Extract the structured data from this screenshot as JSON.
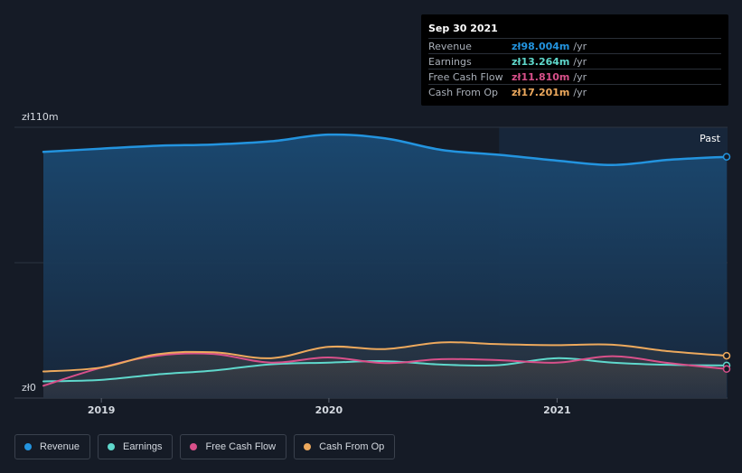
{
  "chart_data": {
    "type": "area",
    "currency": "zł",
    "unit": "m",
    "ylim": [
      0,
      110
    ],
    "y_tick_labels": [
      "zł110m",
      "zł0"
    ],
    "x_range": [
      "2018-09-30",
      "2021-09-30"
    ],
    "x_tick_labels": [
      "2019",
      "2020",
      "2021"
    ],
    "x_tick_dates": [
      "2019-01-01",
      "2020-01-01",
      "2021-01-01"
    ],
    "past_label": "Past",
    "past_start": "2020-09-30",
    "grid": true,
    "legend_position": "bottom-left",
    "x": [
      "2018-09-30",
      "2018-12-31",
      "2019-03-31",
      "2019-06-30",
      "2019-09-30",
      "2019-12-31",
      "2020-03-31",
      "2020-06-30",
      "2020-09-30",
      "2020-12-31",
      "2021-03-31",
      "2021-06-30",
      "2021-09-30"
    ],
    "series": [
      {
        "name": "Revenue",
        "color": "#2394df",
        "values": [
          100.0,
          101.3,
          102.5,
          103.0,
          104.3,
          107.0,
          105.5,
          100.8,
          98.8,
          96.5,
          94.7,
          96.8,
          98.004
        ]
      },
      {
        "name": "Earnings",
        "color": "#5fd8cc",
        "values": [
          6.8,
          7.4,
          9.6,
          11.2,
          13.7,
          14.4,
          15.0,
          13.6,
          13.4,
          16.2,
          14.4,
          13.5,
          13.264
        ]
      },
      {
        "name": "Free Cash Flow",
        "color": "#d8508a",
        "values": [
          5.0,
          12.3,
          17.2,
          17.9,
          14.4,
          16.5,
          14.2,
          15.8,
          15.4,
          14.4,
          17.0,
          14.2,
          11.81
        ]
      },
      {
        "name": "Cash From Op",
        "color": "#eda95d",
        "values": [
          10.8,
          12.4,
          17.8,
          18.6,
          16.2,
          20.8,
          19.9,
          22.6,
          21.9,
          21.5,
          21.7,
          19.0,
          17.201
        ]
      }
    ]
  },
  "tooltip": {
    "date": "Sep 30 2021",
    "rows": [
      {
        "label": "Revenue",
        "value": "zł98.004m",
        "unit": "/yr",
        "color": "#2394df"
      },
      {
        "label": "Earnings",
        "value": "zł13.264m",
        "unit": "/yr",
        "color": "#5fd8cc"
      },
      {
        "label": "Free Cash Flow",
        "value": "zł11.810m",
        "unit": "/yr",
        "color": "#d8508a"
      },
      {
        "label": "Cash From Op",
        "value": "zł17.201m",
        "unit": "/yr",
        "color": "#eda95d"
      }
    ]
  },
  "legend": [
    {
      "label": "Revenue",
      "color": "#2394df"
    },
    {
      "label": "Earnings",
      "color": "#5fd8cc"
    },
    {
      "label": "Free Cash Flow",
      "color": "#d8508a"
    },
    {
      "label": "Cash From Op",
      "color": "#eda95d"
    }
  ]
}
